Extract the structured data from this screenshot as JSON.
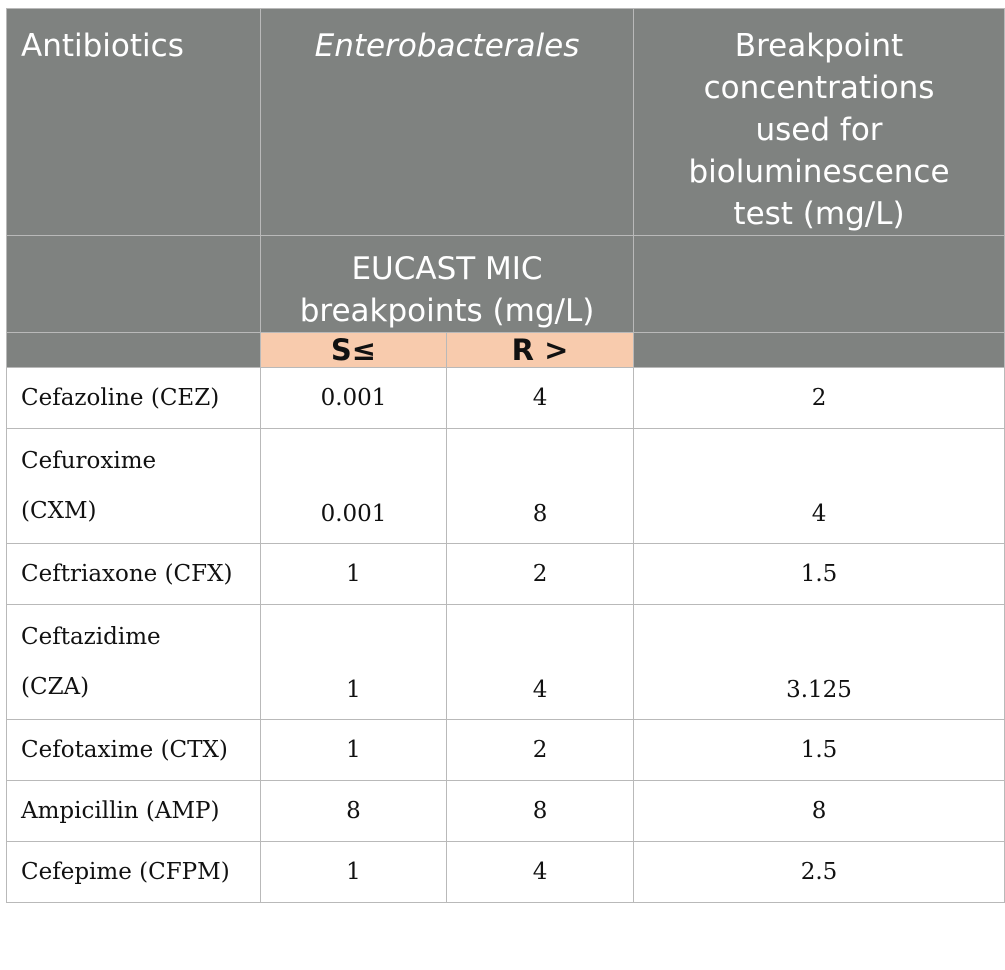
{
  "header": {
    "col_antibiotics": "Antibiotics",
    "col_organism": "Enterobacterales",
    "col_breakpoint_lines": [
      "Breakpoint",
      "concentrations",
      "used for",
      "bioluminescence",
      "test (mg/L)"
    ],
    "eucast_lines": [
      "EUCAST MIC",
      "breakpoints (mg/L)"
    ],
    "sub_s": "S≤",
    "sub_r": "R >"
  },
  "rows": [
    {
      "name_lines": [
        "Cefazoline (CEZ)"
      ],
      "s": "0.001",
      "r": "4",
      "bp": "2"
    },
    {
      "name_lines": [
        "Cefuroxime",
        "(CXM)"
      ],
      "s": "0.001",
      "r": "8",
      "bp": "4"
    },
    {
      "name_lines": [
        "Ceftriaxone (CFX)"
      ],
      "s": "1",
      "r": "2",
      "bp": "1.5"
    },
    {
      "name_lines": [
        "Ceftazidime",
        "(CZA)"
      ],
      "s": "1",
      "r": "4",
      "bp": "3.125"
    },
    {
      "name_lines": [
        "Cefotaxime (CTX)"
      ],
      "s": "1",
      "r": "2",
      "bp": "1.5"
    },
    {
      "name_lines": [
        "Ampicillin (AMP)"
      ],
      "s": "8",
      "r": "8",
      "bp": "8"
    },
    {
      "name_lines": [
        "Cefepime (CFPM)"
      ],
      "s": "1",
      "r": "4",
      "bp": "2.5"
    }
  ]
}
